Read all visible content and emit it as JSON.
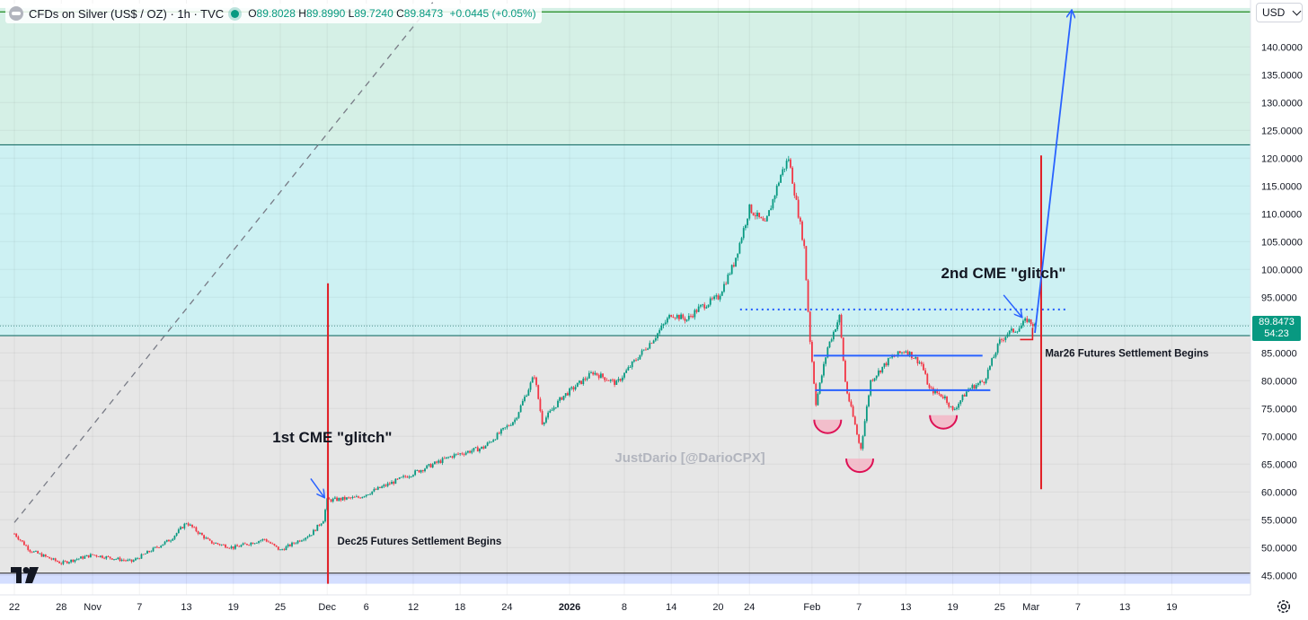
{
  "legend": {
    "symbol": "CFDs on Silver (US$ / OZ) · 1h · TVC",
    "open_label": "O",
    "open": "89.8028",
    "high_label": "H",
    "high": "89.8990",
    "low_label": "L",
    "low": "89.7240",
    "close_label": "C",
    "close": "89.8473",
    "change": "+0.0445 (+0.05%)"
  },
  "currency": "USD",
  "price_badge": {
    "price": "89.8473",
    "countdown": "54:23"
  },
  "watermark": "JustDario [@DarioCPX]",
  "colors": {
    "up": "#089981",
    "down": "#f23645",
    "blue": "#2962ff",
    "red_line": "#e11d24",
    "zone_top": "#d5f0e6",
    "zone_mid": "#cdf1f3",
    "zone_low": "#e6e6e6",
    "zone_bottom": "#d4deff"
  },
  "chart_data": {
    "type": "candlestick",
    "title": "CFDs on Silver (US$ / OZ) · 1h · TVC",
    "ylabel": "USD",
    "ylim": [
      43.5,
      147
    ],
    "y_ticks": [
      45,
      50,
      55,
      60,
      65,
      70,
      75,
      80,
      85,
      90,
      95,
      100,
      105,
      110,
      115,
      120,
      125,
      130,
      135,
      140
    ],
    "x_ticks": [
      {
        "label": "22",
        "day": 0
      },
      {
        "label": "28",
        "day": 6
      },
      {
        "label": "Nov",
        "day": 10
      },
      {
        "label": "7",
        "day": 16
      },
      {
        "label": "13",
        "day": 22
      },
      {
        "label": "19",
        "day": 28
      },
      {
        "label": "25",
        "day": 34
      },
      {
        "label": "Dec",
        "day": 40
      },
      {
        "label": "6",
        "day": 45
      },
      {
        "label": "12",
        "day": 51
      },
      {
        "label": "18",
        "day": 57
      },
      {
        "label": "24",
        "day": 63
      },
      {
        "label": "2026",
        "day": 71
      },
      {
        "label": "8",
        "day": 78
      },
      {
        "label": "14",
        "day": 84
      },
      {
        "label": "20",
        "day": 90
      },
      {
        "label": "24",
        "day": 94
      },
      {
        "label": "Feb",
        "day": 102
      },
      {
        "label": "7",
        "day": 108
      },
      {
        "label": "13",
        "day": 114
      },
      {
        "label": "19",
        "day": 120
      },
      {
        "label": "25",
        "day": 126
      },
      {
        "label": "Mar",
        "day": 130
      },
      {
        "label": "7",
        "day": 136
      },
      {
        "label": "13",
        "day": 142
      },
      {
        "label": "19",
        "day": 148
      }
    ],
    "price_path": [
      [
        0,
        52.5
      ],
      [
        2,
        49.5
      ],
      [
        6,
        47.2
      ],
      [
        10,
        48.7
      ],
      [
        15,
        47.5
      ],
      [
        20,
        51.5
      ],
      [
        22,
        54.5
      ],
      [
        25,
        51.0
      ],
      [
        28,
        50.0
      ],
      [
        32,
        51.5
      ],
      [
        34,
        49.5
      ],
      [
        38,
        52.5
      ],
      [
        39.5,
        55.0
      ],
      [
        40,
        58.5
      ],
      [
        44,
        59.0
      ],
      [
        48,
        61.5
      ],
      [
        52,
        64.0
      ],
      [
        56,
        66.5
      ],
      [
        60,
        68.0
      ],
      [
        64,
        73.0
      ],
      [
        66.5,
        81.0
      ],
      [
        67.5,
        72.5
      ],
      [
        70,
        77.0
      ],
      [
        74,
        81.5
      ],
      [
        77,
        79.5
      ],
      [
        79,
        83.0
      ],
      [
        82,
        88.0
      ],
      [
        84,
        92.0
      ],
      [
        86,
        91.0
      ],
      [
        87.5,
        93.0
      ],
      [
        90,
        95.0
      ],
      [
        92,
        101.0
      ],
      [
        94,
        111.0
      ],
      [
        96,
        108.0
      ],
      [
        98,
        117.0
      ],
      [
        99,
        120.0
      ],
      [
        100,
        112.0
      ],
      [
        101,
        104.0
      ],
      [
        101.7,
        88.0
      ],
      [
        102.5,
        76.0
      ],
      [
        104,
        86.0
      ],
      [
        105.5,
        91.5
      ],
      [
        106.3,
        79.0
      ],
      [
        107.5,
        72.0
      ],
      [
        108.2,
        67.5
      ],
      [
        109.5,
        80.0
      ],
      [
        112,
        84.0
      ],
      [
        114,
        85.5
      ],
      [
        116,
        83.0
      ],
      [
        117,
        78.5
      ],
      [
        119,
        77.0
      ],
      [
        120,
        74.5
      ],
      [
        122,
        78.5
      ],
      [
        124,
        80.0
      ],
      [
        126,
        87.0
      ],
      [
        127,
        88.5
      ],
      [
        128.5,
        89.5
      ],
      [
        129.5,
        91.0
      ],
      [
        130.5,
        89.8473
      ]
    ],
    "horizontal_levels": [
      {
        "name": "upper-band",
        "value": 146.3,
        "color": "#1e8a1e"
      },
      {
        "name": "resistance-122",
        "value": 122.4,
        "color": "#1a6f6a"
      },
      {
        "name": "band-88",
        "value": 88.1,
        "color": "#1a6f6a"
      },
      {
        "name": "support-45",
        "value": 45.4,
        "color": "#333333"
      },
      {
        "name": "current-price",
        "value": 89.8473,
        "color": "#1a6f6a",
        "style": "dotted"
      }
    ],
    "zones": [
      {
        "from": 122.4,
        "to": 147,
        "name": "zone-top"
      },
      {
        "from": 88.1,
        "to": 122.4,
        "name": "zone-mid"
      },
      {
        "from": 45.4,
        "to": 88.1,
        "name": "zone-low"
      },
      {
        "from": 43.5,
        "to": 45.4,
        "name": "zone-bottom"
      }
    ],
    "red_verticals": [
      {
        "day": 40.1,
        "from": 43.5,
        "to": 97.5
      },
      {
        "day": 131.3,
        "from": 60.5,
        "to": 120.5
      }
    ],
    "blue_lines": [
      {
        "name": "neckline-upper",
        "day1": 102.2,
        "day2": 123.8,
        "value": 84.5
      },
      {
        "name": "neckline-lower",
        "day1": 102.4,
        "day2": 124.8,
        "value": 78.3
      },
      {
        "name": "dotted-resistance",
        "day1": 92.8,
        "day2": 134.7,
        "value": 92.8,
        "style": "dotted"
      }
    ],
    "projection_arrow": {
      "from": {
        "day": 130.5,
        "value": 88.6
      },
      "to": {
        "day": 135.2,
        "value": 146.5
      }
    },
    "dashed_trend": {
      "from": {
        "day": 0,
        "value": 54.5
      },
      "to": {
        "day": 53.5,
        "value": 148
      }
    },
    "bowls": [
      {
        "day": 104.0,
        "value": 73.0,
        "filled_to": 73.0
      },
      {
        "day": 108.1,
        "value": 66.0
      },
      {
        "day": 118.8,
        "value": 73.8
      }
    ],
    "annotations": [
      {
        "text": "1st CME \"glitch\"",
        "day": 33,
        "value": 68.9
      },
      {
        "text": "2nd CME \"glitch\"",
        "day": 118.5,
        "value": 98.4
      },
      {
        "text": "Dec25 Futures Settlement Begins",
        "day": 41.3,
        "value": 50.5
      },
      {
        "text": "Mar26 Futures Settlement Begins",
        "day": 131.8,
        "value": 84.3
      }
    ],
    "pointer_arrows": [
      {
        "from": {
          "day": 37.9,
          "value": 62.4
        },
        "to": {
          "day": 39.6,
          "value": 59.1
        }
      },
      {
        "from": {
          "day": 126.5,
          "value": 95.4
        },
        "to": {
          "day": 128.8,
          "value": 91.5
        }
      }
    ]
  }
}
